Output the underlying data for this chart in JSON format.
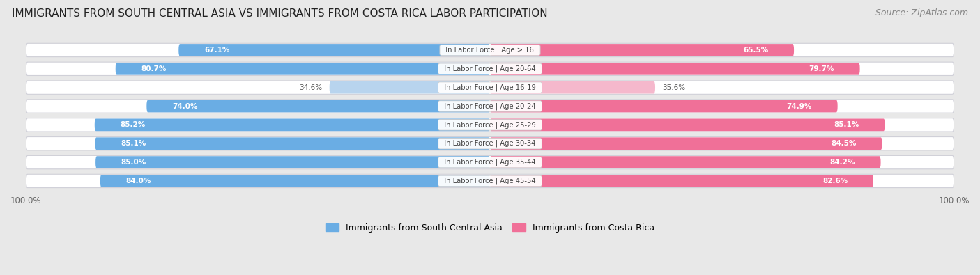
{
  "title": "IMMIGRANTS FROM SOUTH CENTRAL ASIA VS IMMIGRANTS FROM COSTA RICA LABOR PARTICIPATION",
  "source": "Source: ZipAtlas.com",
  "categories": [
    "In Labor Force | Age > 16",
    "In Labor Force | Age 20-64",
    "In Labor Force | Age 16-19",
    "In Labor Force | Age 20-24",
    "In Labor Force | Age 25-29",
    "In Labor Force | Age 30-34",
    "In Labor Force | Age 35-44",
    "In Labor Force | Age 45-54"
  ],
  "left_values": [
    67.1,
    80.7,
    34.6,
    74.0,
    85.2,
    85.1,
    85.0,
    84.0
  ],
  "right_values": [
    65.5,
    79.7,
    35.6,
    74.9,
    85.1,
    84.5,
    84.2,
    82.6
  ],
  "left_color": "#6aade4",
  "left_color_light": "#b8d4ee",
  "right_color": "#f07098",
  "right_color_light": "#f5b8cc",
  "label_left": "Immigrants from South Central Asia",
  "label_right": "Immigrants from Costa Rica",
  "bg_color": "#e8e8e8",
  "row_bg_color": "#f2f2f4",
  "max_value": 100.0,
  "title_fontsize": 11,
  "source_fontsize": 9,
  "bar_height": 0.72,
  "axis_label_fontsize": 9
}
